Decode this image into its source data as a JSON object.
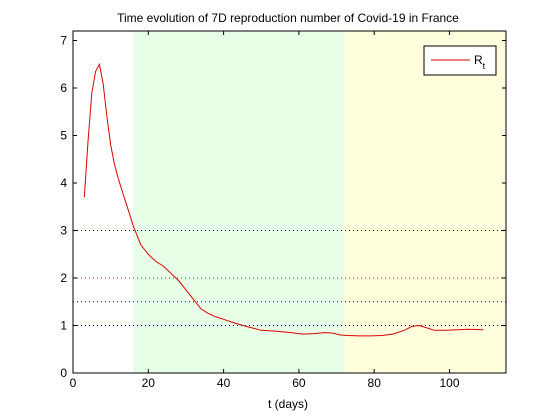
{
  "chart_data": {
    "type": "line",
    "title": "Time evolution of 7D reproduction number of Covid-19 in France",
    "xlabel": "t (days)",
    "ylabel": "",
    "xlim": [
      0,
      115
    ],
    "ylim": [
      0,
      7.2
    ],
    "xticks": [
      0,
      20,
      40,
      60,
      80,
      100
    ],
    "yticks": [
      0,
      1,
      2,
      3,
      4,
      5,
      6,
      7
    ],
    "grid": false,
    "legend": {
      "placement": "top-right",
      "base": "R",
      "subscript": "t"
    },
    "shaded_regions": [
      {
        "x_start": 16,
        "x_end": 72,
        "color": "#e6ffe6"
      },
      {
        "x_start": 72,
        "x_end": 115,
        "color": "#ffffdd"
      }
    ],
    "reference_lines": [
      {
        "y": 3,
        "color": "#000080"
      },
      {
        "y": 2,
        "color": "#b22222"
      },
      {
        "y": 1.5,
        "color": "#000080"
      },
      {
        "y": 1,
        "color": "#000080"
      }
    ],
    "series": [
      {
        "name": "R_t",
        "color": "#dd0000",
        "x": [
          3,
          4,
          5,
          6,
          7,
          8,
          9,
          10,
          11,
          12,
          13,
          14,
          15,
          16,
          17,
          18,
          19,
          20,
          22,
          24,
          26,
          28,
          30,
          32,
          34,
          36,
          38,
          40,
          43,
          46,
          50,
          54,
          58,
          61,
          64,
          67,
          69,
          71,
          73,
          76,
          79,
          82,
          85,
          88,
          90,
          92,
          94,
          96,
          99,
          102,
          105,
          109
        ],
        "y": [
          3.7,
          4.9,
          5.9,
          6.35,
          6.5,
          6.1,
          5.4,
          4.8,
          4.4,
          4.1,
          3.85,
          3.6,
          3.35,
          3.1,
          2.9,
          2.7,
          2.6,
          2.5,
          2.35,
          2.25,
          2.1,
          1.95,
          1.75,
          1.55,
          1.35,
          1.25,
          1.18,
          1.13,
          1.05,
          0.98,
          0.9,
          0.88,
          0.85,
          0.82,
          0.83,
          0.85,
          0.84,
          0.8,
          0.79,
          0.78,
          0.78,
          0.79,
          0.82,
          0.9,
          0.98,
          1.0,
          0.95,
          0.9,
          0.9,
          0.91,
          0.92,
          0.91
        ]
      }
    ]
  }
}
